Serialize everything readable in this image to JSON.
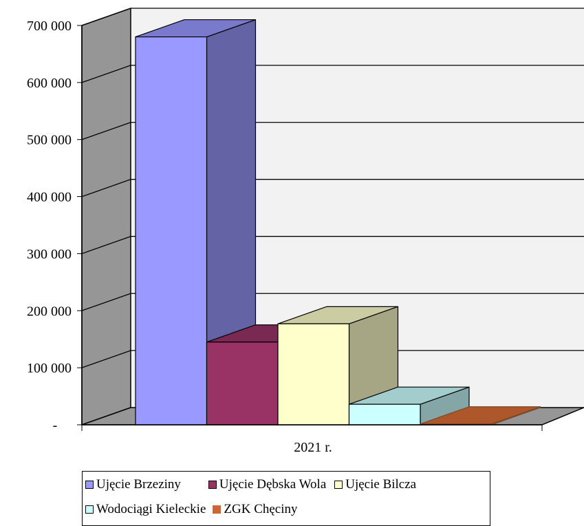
{
  "chart_data": {
    "type": "bar",
    "style": "3d-clustered-column",
    "categories": [
      "2021 r."
    ],
    "series": [
      {
        "name": "Ujęcie Brzeziny",
        "values": [
          680000
        ],
        "color": "#9999FF"
      },
      {
        "name": "Ujęcie Dębska Wola",
        "values": [
          145000
        ],
        "color": "#993366"
      },
      {
        "name": "Ujęcie Bilcza",
        "values": [
          177000
        ],
        "color": "#FFFFCC"
      },
      {
        "name": "Wodociągi Kieleckie",
        "values": [
          36000
        ],
        "color": "#CCFFFF"
      },
      {
        "name": "ZGK Chęciny",
        "values": [
          1500
        ],
        "color": "#CC6633"
      }
    ],
    "y_ticks": [
      "-",
      "100 000",
      "200 000",
      "300 000",
      "400 000",
      "500 000",
      "600 000",
      "700 000"
    ],
    "ylim": [
      0,
      700000
    ],
    "grid": true,
    "legend_position": "bottom",
    "wall_color": "#F2F2F2",
    "side_wall_color": "#969696"
  }
}
